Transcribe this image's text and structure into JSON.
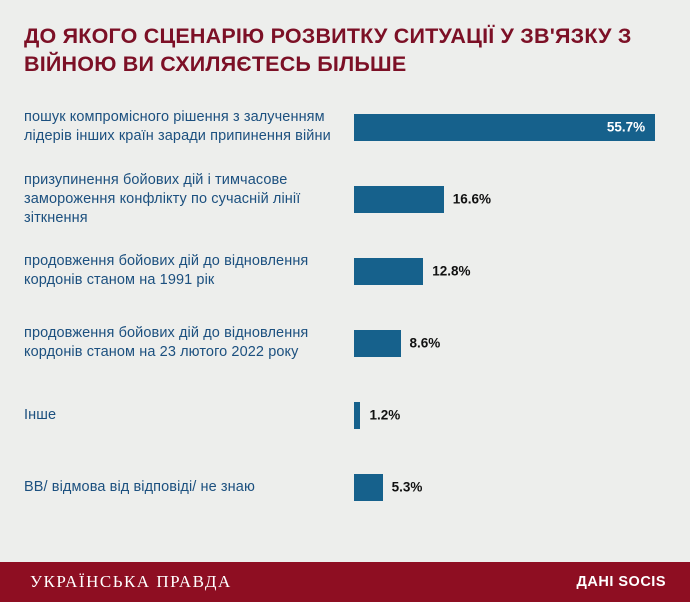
{
  "title": "До якого сценарію розвитку ситуації у зв'язку з війною ви схиляєтесь більше",
  "footer": {
    "brand": "Українська правда",
    "source": "Дані SOCIS"
  },
  "colors": {
    "background": "#edeeec",
    "bar": "#16618c",
    "title_text": "#7c1026",
    "category_text": "#1c507f",
    "value_text": "#111111",
    "value_text_inside": "#ffffff",
    "footer_bg": "#8e0e22"
  },
  "chart_data": {
    "type": "bar",
    "orientation": "horizontal",
    "title": "До якого сценарію розвитку ситуації у зв'язку з війною ви схиляєтесь більше",
    "categories": [
      "пошук компромісного рішення з залученням лідерів інших країн заради припинення війни",
      "призупинення бойових дій і тимчасове замороження конфлікту по сучасній лінії зіткнення",
      "продовження бойових дій до відновлення кордонів станом на 1991 рік",
      "продовження бойових дій до відновлення кордонів станом на 23 лютого 2022 року",
      "Інше",
      "ВВ/ відмова від відповіді/ не знаю"
    ],
    "values": [
      55.7,
      16.6,
      12.8,
      8.6,
      1.2,
      5.3
    ],
    "value_labels": [
      "55.7%",
      "16.6%",
      "12.8%",
      "8.6%",
      "1.2%",
      "5.3%"
    ],
    "xlim": [
      0,
      57.7
    ],
    "grid": false,
    "legend": false,
    "value_label_inside_threshold_pct": 60,
    "source": "Дані SOCIS"
  }
}
